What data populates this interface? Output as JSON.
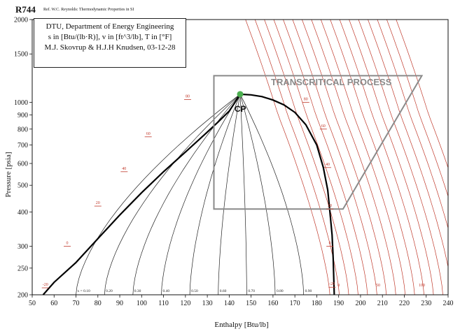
{
  "header": {
    "title": "R744",
    "subtitle": "Ref. W.C. Reynolds: Thermodynamic Properties in SI"
  },
  "info_box": {
    "line1": "DTU, Department of Energy Engineering",
    "line2": "s in [Btu/(lb·R)], v in [ft^3/lb], T in [°F]",
    "line3": "M.J. Skovrup & H.J.H Knudsen, 03-12-28"
  },
  "annotations": {
    "process_label": "TRANSCRITICAL PROCESS",
    "cp_label": "CP"
  },
  "colors": {
    "dome": "#000000",
    "quality_lines": "#222222",
    "isotherms": "#c0392b",
    "process_box": "#8a8a8a",
    "critical_point": "#4caf50"
  },
  "chart_data": {
    "type": "pressure-enthalpy",
    "xlabel": "Enthalpy [Btu/lb]",
    "ylabel": "Pressure [psia]",
    "xlim": [
      50,
      240
    ],
    "ylim": [
      200,
      2000
    ],
    "yscale": "log",
    "xticks": [
      50,
      60,
      70,
      80,
      90,
      100,
      110,
      120,
      130,
      140,
      150,
      160,
      170,
      180,
      190,
      200,
      210,
      220,
      230,
      240
    ],
    "yticks": [
      200,
      250,
      300,
      400,
      500,
      600,
      700,
      800,
      900,
      1000,
      1500,
      2000
    ],
    "critical_point": {
      "h": 145,
      "p": 1071
    },
    "saturated_liquid": [
      [
        55,
        200
      ],
      [
        60,
        222
      ],
      [
        70,
        262
      ],
      [
        80,
        320
      ],
      [
        90,
        390
      ],
      [
        100,
        470
      ],
      [
        110,
        560
      ],
      [
        120,
        660
      ],
      [
        130,
        780
      ],
      [
        135,
        850
      ],
      [
        140,
        930
      ],
      [
        143,
        1010
      ],
      [
        145,
        1071
      ]
    ],
    "saturated_vapor": [
      [
        145,
        1071
      ],
      [
        150,
        1065
      ],
      [
        155,
        1050
      ],
      [
        160,
        1020
      ],
      [
        165,
        980
      ],
      [
        170,
        920
      ],
      [
        175,
        830
      ],
      [
        180,
        700
      ],
      [
        183,
        580
      ],
      [
        185,
        480
      ],
      [
        186,
        400
      ],
      [
        187,
        330
      ],
      [
        187.5,
        270
      ],
      [
        188,
        200
      ]
    ],
    "quality_lines": [
      {
        "label": "x = 0.10",
        "h_at_200": 70
      },
      {
        "label": "0.20",
        "h_at_200": 83
      },
      {
        "label": "0.30",
        "h_at_200": 96
      },
      {
        "label": "0.40",
        "h_at_200": 109
      },
      {
        "label": "0.50",
        "h_at_200": 122
      },
      {
        "label": "0.60",
        "h_at_200": 135
      },
      {
        "label": "0.70",
        "h_at_200": 148
      },
      {
        "label": "0.80",
        "h_at_200": 161
      },
      {
        "label": "0.90",
        "h_at_200": 174
      }
    ],
    "isotherm_labels_liquid": [
      {
        "label": "-20",
        "h": 56,
        "p": 212
      },
      {
        "label": "0",
        "h": 66,
        "p": 300
      },
      {
        "label": "20",
        "h": 80,
        "p": 420
      },
      {
        "label": "40",
        "h": 92,
        "p": 560
      },
      {
        "label": "60",
        "h": 103,
        "p": 750
      },
      {
        "label": "80",
        "h": 121,
        "p": 1025
      }
    ],
    "isotherm_labels_vapor": [
      {
        "label": "80",
        "h": 175,
        "p": 1000
      },
      {
        "label": "60",
        "h": 183,
        "p": 800
      },
      {
        "label": "40",
        "h": 185,
        "p": 580
      },
      {
        "label": "20",
        "h": 186,
        "p": 410
      },
      {
        "label": "0",
        "h": 186,
        "p": 300
      },
      {
        "label": "-20",
        "h": 187,
        "p": 213
      }
    ],
    "isotherm_labels_bottom": [
      {
        "label": "0",
        "h": 190
      },
      {
        "label": "50",
        "h": 208
      },
      {
        "label": "100",
        "h": 228
      }
    ],
    "process": {
      "polygon": [
        [
          133,
          410
        ],
        [
          133,
          1250
        ],
        [
          228,
          1250
        ],
        [
          192,
          410
        ]
      ]
    }
  }
}
